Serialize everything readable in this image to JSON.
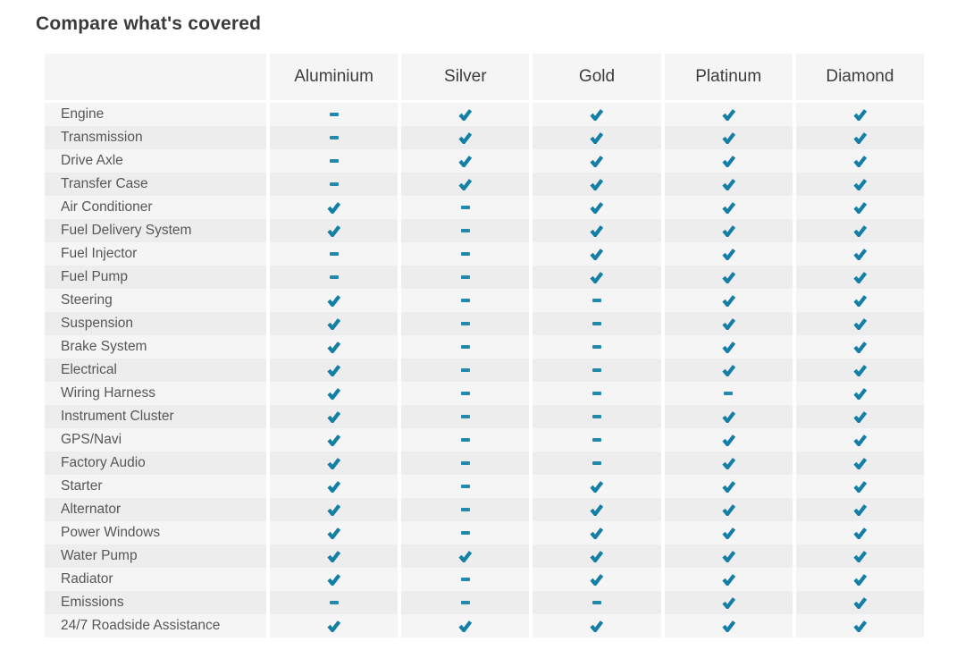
{
  "page": {
    "title": "Compare what's covered"
  },
  "colors": {
    "accent_check": "#147fa6",
    "accent_dash": "#2089ae",
    "row_light": "#f5f5f5",
    "row_dark": "#ededed",
    "header_text": "#3d3d3d",
    "label_text": "#575757",
    "title_text": "#3a3a3a",
    "background": "#ffffff"
  },
  "symbols": {
    "covered": "check-icon",
    "not_covered": "dash-icon"
  },
  "table": {
    "columns": [
      "Aluminium",
      "Silver",
      "Gold",
      "Platinum",
      "Diamond"
    ],
    "rows": [
      {
        "label": "Engine",
        "coverage": [
          false,
          true,
          true,
          true,
          true
        ]
      },
      {
        "label": "Transmission",
        "coverage": [
          false,
          true,
          true,
          true,
          true
        ]
      },
      {
        "label": "Drive Axle",
        "coverage": [
          false,
          true,
          true,
          true,
          true
        ]
      },
      {
        "label": "Transfer Case",
        "coverage": [
          false,
          true,
          true,
          true,
          true
        ]
      },
      {
        "label": "Air Conditioner",
        "coverage": [
          true,
          false,
          true,
          true,
          true
        ]
      },
      {
        "label": "Fuel Delivery System",
        "coverage": [
          true,
          false,
          true,
          true,
          true
        ]
      },
      {
        "label": "Fuel Injector",
        "coverage": [
          false,
          false,
          true,
          true,
          true
        ]
      },
      {
        "label": "Fuel Pump",
        "coverage": [
          false,
          false,
          true,
          true,
          true
        ]
      },
      {
        "label": "Steering",
        "coverage": [
          true,
          false,
          false,
          true,
          true
        ]
      },
      {
        "label": "Suspension",
        "coverage": [
          true,
          false,
          false,
          true,
          true
        ]
      },
      {
        "label": "Brake System",
        "coverage": [
          true,
          false,
          false,
          true,
          true
        ]
      },
      {
        "label": "Electrical",
        "coverage": [
          true,
          false,
          false,
          true,
          true
        ]
      },
      {
        "label": "Wiring Harness",
        "coverage": [
          true,
          false,
          false,
          false,
          true
        ]
      },
      {
        "label": "Instrument Cluster",
        "coverage": [
          true,
          false,
          false,
          true,
          true
        ]
      },
      {
        "label": "GPS/Navi",
        "coverage": [
          true,
          false,
          false,
          true,
          true
        ]
      },
      {
        "label": "Factory Audio",
        "coverage": [
          true,
          false,
          false,
          true,
          true
        ]
      },
      {
        "label": "Starter",
        "coverage": [
          true,
          false,
          true,
          true,
          true
        ]
      },
      {
        "label": "Alternator",
        "coverage": [
          true,
          false,
          true,
          true,
          true
        ]
      },
      {
        "label": "Power Windows",
        "coverage": [
          true,
          false,
          true,
          true,
          true
        ]
      },
      {
        "label": "Water Pump",
        "coverage": [
          true,
          true,
          true,
          true,
          true
        ]
      },
      {
        "label": "Radiator",
        "coverage": [
          true,
          false,
          true,
          true,
          true
        ]
      },
      {
        "label": "Emissions",
        "coverage": [
          false,
          false,
          false,
          true,
          true
        ]
      },
      {
        "label": "24/7 Roadside Assistance",
        "coverage": [
          true,
          true,
          true,
          true,
          true
        ]
      }
    ]
  }
}
